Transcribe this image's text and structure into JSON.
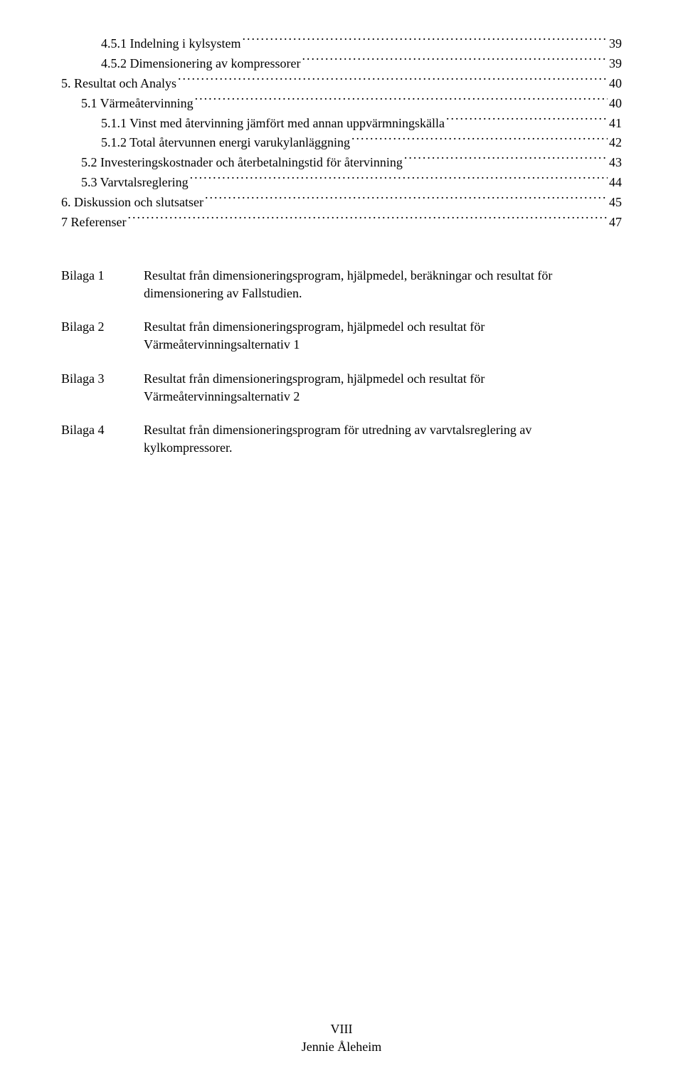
{
  "toc": [
    {
      "text": "4.5.1 Indelning i kylsystem",
      "page": "39",
      "indent": 2
    },
    {
      "text": "4.5.2 Dimensionering av kompressorer",
      "page": "39",
      "indent": 2
    },
    {
      "text": "5. Resultat och Analys",
      "page": "40",
      "indent": 0
    },
    {
      "text": "5.1 Värmeåtervinning",
      "page": "40",
      "indent": 1
    },
    {
      "text": "5.1.1 Vinst med återvinning jämfört med annan uppvärmningskälla",
      "page": "41",
      "indent": 2
    },
    {
      "text": "5.1.2 Total återvunnen energi varukylanläggning",
      "page": "42",
      "indent": 2
    },
    {
      "text": "5.2 Investeringskostnader och återbetalningstid för återvinning",
      "page": "43",
      "indent": 1
    },
    {
      "text": "5.3 Varvtalsreglering",
      "page": "44",
      "indent": 1
    },
    {
      "text": "6. Diskussion och slutsatser",
      "page": "45",
      "indent": 0
    },
    {
      "text": "7 Referenser",
      "page": "47",
      "indent": 0
    }
  ],
  "bilaga": [
    {
      "label": "Bilaga 1",
      "desc": "Resultat från dimensioneringsprogram, hjälpmedel, beräkningar och resultat för dimensionering av Fallstudien."
    },
    {
      "label": "Bilaga 2",
      "desc": "Resultat från dimensioneringsprogram, hjälpmedel och resultat för Värmeåtervinningsalternativ 1"
    },
    {
      "label": "Bilaga 3",
      "desc": "Resultat från dimensioneringsprogram, hjälpmedel och resultat för Värmeåtervinningsalternativ 2"
    },
    {
      "label": "Bilaga 4",
      "desc": "Resultat från dimensioneringsprogram för utredning av varvtalsreglering av kylkompressorer."
    }
  ],
  "footer": {
    "pagenum": "VIII",
    "author": "Jennie Åleheim"
  }
}
